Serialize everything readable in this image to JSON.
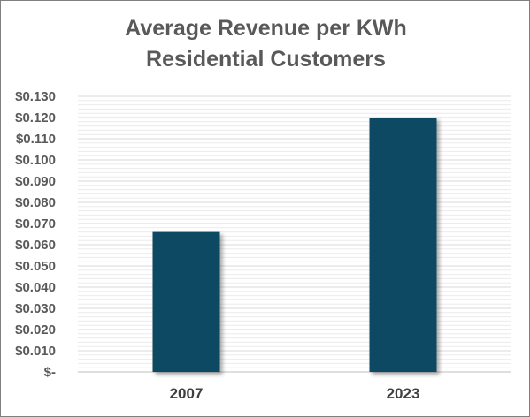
{
  "chart_data": {
    "type": "bar",
    "title_lines": [
      "Average Revenue per KWh",
      "Residential Customers"
    ],
    "categories": [
      "2007",
      "2023"
    ],
    "values": [
      0.066,
      0.12
    ],
    "ylim": [
      0,
      0.13
    ],
    "yticks": [
      "$-",
      "$0.010",
      "$0.020",
      "$0.030",
      "$0.040",
      "$0.050",
      "$0.060",
      "$0.070",
      "$0.080",
      "$0.090",
      "$0.100",
      "$0.110",
      "$0.120",
      "$0.130"
    ],
    "bar_color": "#0b4a63",
    "grid": true,
    "legend": "none"
  }
}
